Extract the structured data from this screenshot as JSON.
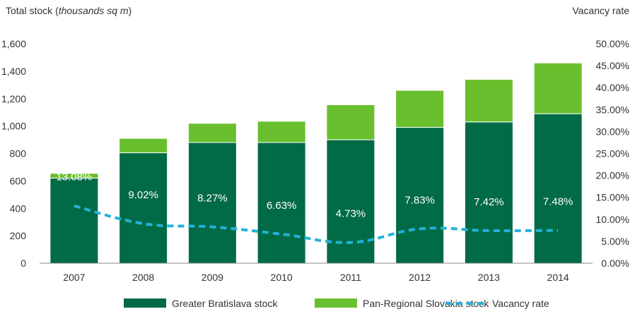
{
  "chart_data": {
    "type": "bar",
    "stacked": true,
    "categories": [
      "2007",
      "2008",
      "2009",
      "2010",
      "2011",
      "2012",
      "2013",
      "2014"
    ],
    "ylabel_left": {
      "prefix": "Total stock (",
      "italic": "thousands sq m",
      "suffix": ")"
    },
    "ylabel_right": "Vacancy rate",
    "left_axis": {
      "ylim": [
        0,
        1600
      ],
      "ticks": [
        "0",
        "200",
        "400",
        "600",
        "800",
        "1,000",
        "1,200",
        "1,400",
        "1,600"
      ]
    },
    "right_axis": {
      "ylim": [
        0,
        50
      ],
      "ticks": [
        "0.00%",
        "5.00%",
        "10.00%",
        "15.00%",
        "20.00%",
        "25.00%",
        "30.00%",
        "35.00%",
        "40.00%",
        "45.00%",
        "50.00%"
      ]
    },
    "series": [
      {
        "name": "Greater Bratislava stock",
        "type": "bar",
        "color": "#006b45",
        "values": [
          620,
          805,
          880,
          880,
          900,
          990,
          1030,
          1090
        ]
      },
      {
        "name": "Pan-Regional Slovakia stock",
        "type": "bar",
        "color": "#6abf2e",
        "values": [
          35,
          105,
          140,
          155,
          255,
          270,
          310,
          370
        ]
      },
      {
        "name": "Vacancy rate",
        "type": "line",
        "axis": "right",
        "style": "dashed",
        "color": "#22b2d8",
        "values": [
          13.08,
          9.02,
          8.27,
          6.63,
          4.73,
          7.83,
          7.42,
          7.48
        ]
      }
    ],
    "data_labels": [
      "13.08%",
      "9.02%",
      "8.27%",
      "6.63%",
      "4.73%",
      "7.83%",
      "7.42%",
      "7.48%"
    ],
    "grid": false,
    "legend_position": "bottom"
  }
}
